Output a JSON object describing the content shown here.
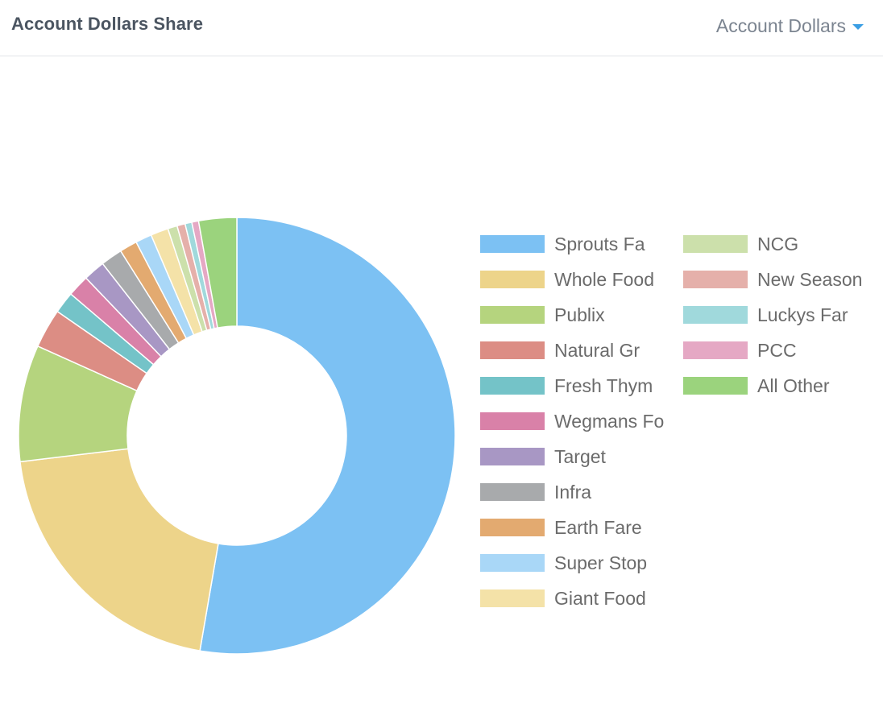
{
  "header": {
    "title": "Account Dollars Share",
    "metric_selector": {
      "label": "Account Dollars",
      "icon": "caret-down-icon",
      "accent_color": "#3a9ee4"
    }
  },
  "chart_data": {
    "type": "pie",
    "variant": "donut",
    "title": "Account Dollars Share",
    "legend_position": "right",
    "legend_text_color": "#6b6b6b",
    "slices": [
      {
        "label": "Sprouts Fa",
        "value": 52.5,
        "color": "#7cc1f3"
      },
      {
        "label": "Whole Food",
        "value": 20.3,
        "color": "#edd48a"
      },
      {
        "label": "Publix",
        "value": 8.6,
        "color": "#b5d47e"
      },
      {
        "label": "Natural Gr",
        "value": 2.9,
        "color": "#dc8d84"
      },
      {
        "label": "Fresh Thym",
        "value": 1.6,
        "color": "#74c3c8"
      },
      {
        "label": "Wegmans Fo",
        "value": 1.6,
        "color": "#d981a8"
      },
      {
        "label": "Target",
        "value": 1.6,
        "color": "#a897c4"
      },
      {
        "label": "Infra",
        "value": 1.6,
        "color": "#a8aaac"
      },
      {
        "label": "Earth Fare",
        "value": 1.3,
        "color": "#e3aa70"
      },
      {
        "label": "Super Stop",
        "value": 1.2,
        "color": "#a9d7f7"
      },
      {
        "label": "Giant Food",
        "value": 1.3,
        "color": "#f4e2a8"
      },
      {
        "label": "NCG",
        "value": 0.7,
        "color": "#cce0ab"
      },
      {
        "label": "New Season",
        "value": 0.6,
        "color": "#e5b0aa"
      },
      {
        "label": "Luckys Far",
        "value": 0.5,
        "color": "#a0d9dc"
      },
      {
        "label": "PCC",
        "value": 0.5,
        "color": "#e5a8c4"
      },
      {
        "label": "All Other",
        "value": 2.8,
        "color": "#9bd37d"
      }
    ]
  }
}
